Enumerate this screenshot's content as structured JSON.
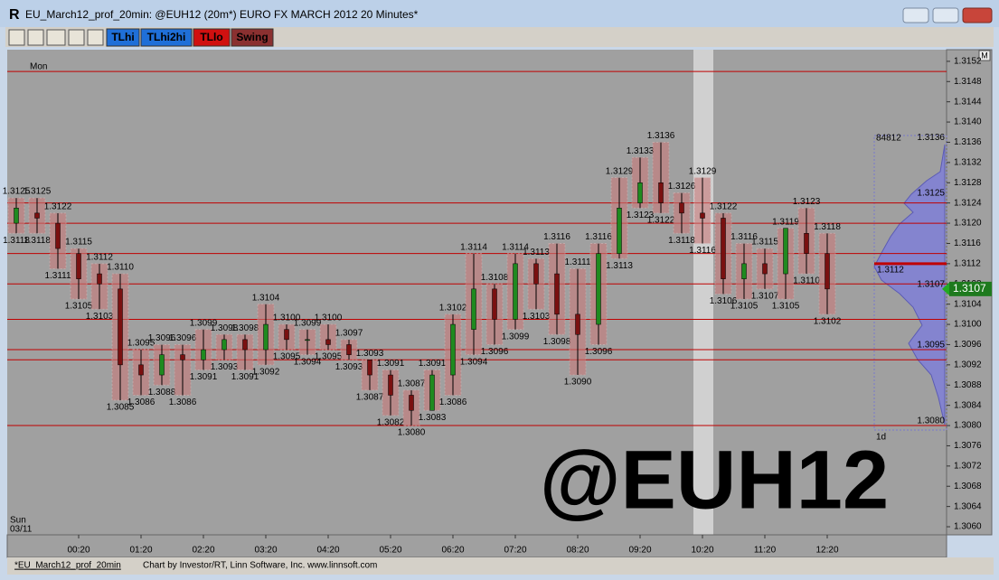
{
  "window": {
    "title": "EU_March12_prof_20min: @EUH12 (20m*) EURO FX MARCH 2012 20 Minutes*"
  },
  "toolbar": {
    "buttons": [
      "TLhi",
      "TLhi2hi",
      "TLlo",
      "Swing"
    ]
  },
  "status": {
    "file": "*EU_March12_prof_20min",
    "credit": "Chart by Investor/RT, Linn Software, Inc. www.linnsoft.com"
  },
  "chart_data": {
    "type": "candlestick",
    "symbol": "@EUH12",
    "session_labels": [
      "Mon",
      "Sun",
      "03/11"
    ],
    "categories": [
      null,
      null,
      null,
      "00:20",
      null,
      null,
      "01:20",
      null,
      null,
      "02:20",
      null,
      null,
      "03:20",
      null,
      null,
      "04:20",
      null,
      null,
      "05:20",
      null,
      null,
      "06:20",
      null,
      null,
      "07:20",
      null,
      null,
      "08:20",
      null,
      null,
      "09:20",
      null,
      null,
      "10:20",
      null,
      null,
      "11:20",
      null,
      null,
      "12:20"
    ],
    "open": [
      1.312,
      1.3122,
      1.312,
      1.3114,
      1.311,
      1.3107,
      1.3092,
      1.309,
      1.3094,
      1.3093,
      1.3095,
      1.3097,
      1.3095,
      1.3099,
      1.3097,
      1.3097,
      1.3096,
      1.3093,
      1.309,
      1.3086,
      1.3083,
      1.309,
      1.3099,
      1.3107,
      1.3101,
      1.3112,
      1.311,
      1.3102,
      1.31,
      1.3114,
      1.3124,
      1.3128,
      1.3124,
      1.3122,
      1.3121,
      1.3109,
      1.3112,
      1.311,
      1.3118,
      1.3114
    ],
    "high": [
      1.3125,
      1.3125,
      1.3122,
      1.3115,
      1.3112,
      1.311,
      1.3095,
      1.3096,
      1.3096,
      1.3099,
      1.3098,
      1.3098,
      1.3104,
      1.31,
      1.3099,
      1.31,
      1.3097,
      1.3093,
      1.3091,
      1.3087,
      1.3091,
      1.3102,
      1.3114,
      1.3108,
      1.3114,
      1.3113,
      1.3116,
      1.3111,
      1.3116,
      1.3129,
      1.3133,
      1.3136,
      1.3126,
      1.3129,
      1.3122,
      1.3116,
      1.3115,
      1.3119,
      1.3123,
      1.3118
    ],
    "low": [
      1.3118,
      1.3118,
      1.3111,
      1.3105,
      1.3103,
      1.3085,
      1.3086,
      1.3088,
      1.3086,
      1.3091,
      1.3093,
      1.3091,
      1.3092,
      1.3095,
      1.3094,
      1.3095,
      1.3093,
      1.3087,
      1.3082,
      1.308,
      1.3083,
      1.3086,
      1.3094,
      1.3096,
      1.3099,
      1.3103,
      1.3098,
      1.309,
      1.3096,
      1.3113,
      1.3123,
      1.3122,
      1.3118,
      1.3116,
      1.3106,
      1.3105,
      1.3107,
      1.3105,
      1.311,
      1.3102
    ],
    "close": [
      1.3123,
      1.3121,
      1.3115,
      1.3109,
      1.3108,
      1.3092,
      1.309,
      1.3094,
      1.3093,
      1.3095,
      1.3097,
      1.3095,
      1.31,
      1.3097,
      1.3097,
      1.3096,
      1.3094,
      1.309,
      1.3086,
      1.3083,
      1.309,
      1.31,
      1.3107,
      1.3101,
      1.3112,
      1.3108,
      1.3102,
      1.3098,
      1.3114,
      1.3123,
      1.3128,
      1.3124,
      1.3122,
      1.3121,
      1.3109,
      1.3112,
      1.311,
      1.3119,
      1.3114,
      1.3107
    ],
    "high_labels": [
      "1.3125",
      "1.3125",
      "1.3122",
      "1.3115",
      "1.3112",
      "1.3110",
      "1.3095",
      "1.3096",
      "1.3096",
      "1.3099",
      "1.3098",
      "1.3098",
      "1.3104",
      "1.3100",
      "1.3099",
      "1.3100",
      "1.3097",
      "1.3093",
      "1.3091",
      "1.3087",
      "1.3091",
      "1.3102",
      "1.3114",
      "1.3108",
      "1.3114",
      "1.3113",
      "1.3116",
      "1.3111",
      "1.3116",
      "1.3129",
      "1.3133",
      "1.3136",
      "1.3126",
      "1.3129",
      "1.3122",
      "1.3116",
      "1.3115",
      "1.3119",
      "1.3123",
      "1.3118"
    ],
    "low_labels": [
      "1.3118",
      "1.3118",
      "1.3111",
      "1.3105",
      "1.3103",
      "1.3085",
      "1.3086",
      "1.3088",
      "1.3086",
      "1.3091",
      "1.3093",
      "1.3091",
      "1.3092",
      "1.3095",
      "1.3094",
      "1.3095",
      "1.3093",
      "1.3087",
      "1.3082",
      "1.3080",
      "1.3083",
      "1.3086",
      "1.3094",
      "1.3096",
      "1.3099",
      "1.3103",
      "1.3098",
      "1.3090",
      "1.3096",
      "1.3113",
      "1.3123",
      "1.3122",
      "1.3118",
      "1.3116",
      "1.3106",
      "1.3105",
      "1.3107",
      "1.3105",
      "1.3110",
      "1.3102"
    ],
    "up_color": "#1f8a1f",
    "down_color": "#7a1010",
    "level_color": "#c00000",
    "levels": [
      1.315,
      1.3124,
      1.312,
      1.3114,
      1.3108,
      1.3101,
      1.3095,
      1.3093,
      1.308
    ],
    "ylim": [
      1.30584,
      1.31543
    ],
    "yticks": [
      1.3152,
      1.3148,
      1.3144,
      {
        "value": 1.314,
        "label": "1.3140"
      },
      1.3136,
      1.3132,
      1.3128,
      1.3124,
      {
        "value": 1.312,
        "label": "1.3120"
      },
      1.3116,
      1.3112,
      1.3108,
      1.3104,
      {
        "value": 1.31,
        "label": "1.3100"
      },
      1.3096,
      1.3092,
      1.3088,
      1.3084,
      {
        "value": 1.308,
        "label": "1.3080"
      },
      1.3076,
      1.3072,
      1.3068,
      1.3064,
      {
        "value": 1.306,
        "label": "1.3060"
      }
    ],
    "last": 1.3107,
    "profile": {
      "volume": "84812",
      "period": "1d",
      "poc": 1.3112,
      "levels": [
        1.3136,
        1.3125,
        1.3107,
        1.3095,
        {
          "value": 1.308,
          "label": "1.3080"
        }
      ]
    }
  }
}
